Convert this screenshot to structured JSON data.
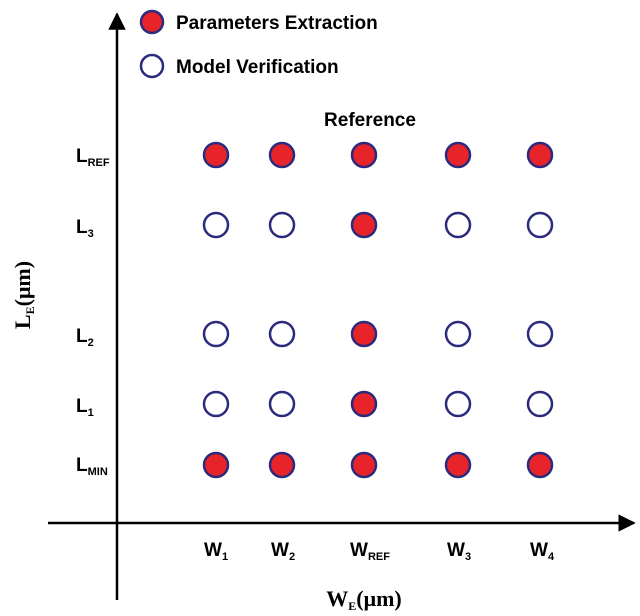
{
  "legend": {
    "filled_label": "Parameters Extraction",
    "open_label": "Model Verification"
  },
  "annotation": "Reference",
  "axes": {
    "y_label": {
      "main": "L",
      "sub": "E",
      "unit": "(μm)"
    },
    "x_label": {
      "main": "W",
      "sub": "E",
      "unit": "(μm)"
    }
  },
  "rows": [
    {
      "main": "L",
      "sub": "REF"
    },
    {
      "main": "L",
      "sub": "3"
    },
    {
      "main": "L",
      "sub": "2"
    },
    {
      "main": "L",
      "sub": "1"
    },
    {
      "main": "L",
      "sub": "MIN"
    }
  ],
  "columns": [
    {
      "main": "W",
      "sub": "1"
    },
    {
      "main": "W",
      "sub": "2"
    },
    {
      "main": "W",
      "sub": "REF"
    },
    {
      "main": "W",
      "sub": "3"
    },
    {
      "main": "W",
      "sub": "4"
    }
  ],
  "points": [
    {
      "row": "L_REF",
      "col": "W_1",
      "type": "parameters-extraction"
    },
    {
      "row": "L_REF",
      "col": "W_2",
      "type": "parameters-extraction"
    },
    {
      "row": "L_REF",
      "col": "W_REF",
      "type": "parameters-extraction"
    },
    {
      "row": "L_REF",
      "col": "W_3",
      "type": "parameters-extraction"
    },
    {
      "row": "L_REF",
      "col": "W_4",
      "type": "parameters-extraction"
    },
    {
      "row": "L_3",
      "col": "W_1",
      "type": "model-verification"
    },
    {
      "row": "L_3",
      "col": "W_2",
      "type": "model-verification"
    },
    {
      "row": "L_3",
      "col": "W_REF",
      "type": "parameters-extraction"
    },
    {
      "row": "L_3",
      "col": "W_3",
      "type": "model-verification"
    },
    {
      "row": "L_3",
      "col": "W_4",
      "type": "model-verification"
    },
    {
      "row": "L_2",
      "col": "W_1",
      "type": "model-verification"
    },
    {
      "row": "L_2",
      "col": "W_2",
      "type": "model-verification"
    },
    {
      "row": "L_2",
      "col": "W_REF",
      "type": "parameters-extraction"
    },
    {
      "row": "L_2",
      "col": "W_3",
      "type": "model-verification"
    },
    {
      "row": "L_2",
      "col": "W_4",
      "type": "model-verification"
    },
    {
      "row": "L_1",
      "col": "W_1",
      "type": "model-verification"
    },
    {
      "row": "L_1",
      "col": "W_2",
      "type": "model-verification"
    },
    {
      "row": "L_1",
      "col": "W_REF",
      "type": "parameters-extraction"
    },
    {
      "row": "L_1",
      "col": "W_3",
      "type": "model-verification"
    },
    {
      "row": "L_1",
      "col": "W_4",
      "type": "model-verification"
    },
    {
      "row": "L_MIN",
      "col": "W_1",
      "type": "parameters-extraction"
    },
    {
      "row": "L_MIN",
      "col": "W_2",
      "type": "parameters-extraction"
    },
    {
      "row": "L_MIN",
      "col": "W_REF",
      "type": "parameters-extraction"
    },
    {
      "row": "L_MIN",
      "col": "W_3",
      "type": "parameters-extraction"
    },
    {
      "row": "L_MIN",
      "col": "W_4",
      "type": "parameters-extraction"
    }
  ],
  "colors": {
    "filled": "#e8242b",
    "outline": "#2b2a7d",
    "open_fill": "#ffffff",
    "axis": "#000000"
  }
}
